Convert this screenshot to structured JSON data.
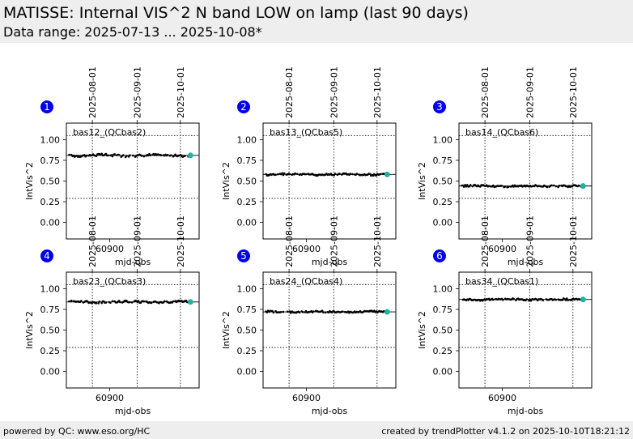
{
  "header": {
    "title": "MATISSE: Internal VIS^2 N band LOW on lamp (last 90 days)",
    "subtitle": "Data range: 2025-07-13 ... 2025-10-08*"
  },
  "footer": {
    "left": "powered by QC: www.eso.org/HC",
    "right": "created by trendPlotter v4.1.2 on 2025-10-10T18:21:12"
  },
  "colors": {
    "points": "#000000",
    "latest": "#20b2aa",
    "badge": "#0000ee"
  },
  "chart_data": [
    {
      "type": "scatter",
      "panel": "1",
      "label": "bas12_(QCbas2)",
      "xlabel": "mjd-obs",
      "ylabel": "IntVis^2",
      "xlim": [
        60870,
        60962
      ],
      "ylim": [
        -0.2,
        1.2
      ],
      "yticks": [
        1.0,
        0.75,
        0.5,
        0.25,
        0.0
      ],
      "ytick_labels": [
        "1.00",
        "0.75",
        "0.50",
        "0.25",
        "0.00"
      ],
      "xticks": [
        60900
      ],
      "xtick_labels": [
        "60900"
      ],
      "date_ticks": [
        60888,
        60919,
        60949
      ],
      "date_labels": [
        "2025-08-01",
        "2025-09-01",
        "2025-10-01"
      ],
      "limits": [
        1.05,
        0.29
      ],
      "ref": 0.81,
      "value": 0.81,
      "spread": 0.015,
      "latest": [
        60956,
        0.81
      ]
    },
    {
      "type": "scatter",
      "panel": "2",
      "label": "bas13_(QCbas5)",
      "xlabel": "mjd-obs",
      "ylabel": "IntVis^2",
      "xlim": [
        60870,
        60962
      ],
      "ylim": [
        -0.2,
        1.2
      ],
      "yticks": [
        1.0,
        0.75,
        0.5,
        0.25,
        0.0
      ],
      "ytick_labels": [
        "1.00",
        "0.75",
        "0.50",
        "0.25",
        "0.00"
      ],
      "xticks": [
        60900
      ],
      "xtick_labels": [
        "60900"
      ],
      "date_ticks": [
        60888,
        60919,
        60949
      ],
      "date_labels": [
        "2025-08-01",
        "2025-09-01",
        "2025-10-01"
      ],
      "limits": [
        1.05,
        0.29
      ],
      "ref": 0.58,
      "value": 0.58,
      "spread": 0.012,
      "latest": [
        60956,
        0.58
      ]
    },
    {
      "type": "scatter",
      "panel": "3",
      "label": "bas14_(QCbas6)",
      "xlabel": "mjd-obs",
      "ylabel": "IntVis^2",
      "xlim": [
        60870,
        60962
      ],
      "ylim": [
        -0.2,
        1.2
      ],
      "yticks": [
        1.0,
        0.75,
        0.5,
        0.25,
        0.0
      ],
      "ytick_labels": [
        "1.00",
        "0.75",
        "0.50",
        "0.25",
        "0.00"
      ],
      "xticks": [
        60900
      ],
      "xtick_labels": [
        "60900"
      ],
      "date_ticks": [
        60888,
        60919,
        60949
      ],
      "date_labels": [
        "2025-08-01",
        "2025-09-01",
        "2025-10-01"
      ],
      "limits": [
        1.05,
        0.29
      ],
      "ref": 0.44,
      "value": 0.44,
      "spread": 0.012,
      "latest": [
        60956,
        0.44
      ]
    },
    {
      "type": "scatter",
      "panel": "4",
      "label": "bas23_(QCbas3)",
      "xlabel": "mjd-obs",
      "ylabel": "IntVis^2",
      "xlim": [
        60870,
        60962
      ],
      "ylim": [
        -0.2,
        1.2
      ],
      "yticks": [
        1.0,
        0.75,
        0.5,
        0.25,
        0.0
      ],
      "ytick_labels": [
        "1.00",
        "0.75",
        "0.50",
        "0.25",
        "0.00"
      ],
      "xticks": [
        60900
      ],
      "xtick_labels": [
        "60900"
      ],
      "date_ticks": [
        60888,
        60919,
        60949
      ],
      "date_labels": [
        "2025-08-01",
        "2025-09-01",
        "2025-10-01"
      ],
      "limits": [
        1.05,
        0.29
      ],
      "ref": 0.84,
      "value": 0.84,
      "spread": 0.012,
      "latest": [
        60956,
        0.84
      ]
    },
    {
      "type": "scatter",
      "panel": "5",
      "label": "bas24_(QCbas4)",
      "xlabel": "mjd-obs",
      "ylabel": "IntVis^2",
      "xlim": [
        60870,
        60962
      ],
      "ylim": [
        -0.2,
        1.2
      ],
      "yticks": [
        1.0,
        0.75,
        0.5,
        0.25,
        0.0
      ],
      "ytick_labels": [
        "1.00",
        "0.75",
        "0.50",
        "0.25",
        "0.00"
      ],
      "xticks": [
        60900
      ],
      "xtick_labels": [
        "60900"
      ],
      "date_ticks": [
        60888,
        60919,
        60949
      ],
      "date_labels": [
        "2025-08-01",
        "2025-09-01",
        "2025-10-01"
      ],
      "limits": [
        1.05,
        0.29
      ],
      "ref": 0.72,
      "value": 0.72,
      "spread": 0.01,
      "latest": [
        60956,
        0.72
      ]
    },
    {
      "type": "scatter",
      "panel": "6",
      "label": "bas34_(QCbas1)",
      "xlabel": "mjd-obs",
      "ylabel": "IntVis^2",
      "xlim": [
        60870,
        60962
      ],
      "ylim": [
        -0.2,
        1.2
      ],
      "yticks": [
        1.0,
        0.75,
        0.5,
        0.25,
        0.0
      ],
      "ytick_labels": [
        "1.00",
        "0.75",
        "0.50",
        "0.25",
        "0.00"
      ],
      "xticks": [
        60900
      ],
      "xtick_labels": [
        "60900"
      ],
      "date_ticks": [
        60888,
        60919,
        60949
      ],
      "date_labels": [
        "2025-08-01",
        "2025-09-01",
        "2025-10-01"
      ],
      "limits": [
        1.05,
        0.29
      ],
      "ref": 0.87,
      "value": 0.87,
      "spread": 0.012,
      "latest": [
        60956,
        0.87
      ]
    }
  ]
}
